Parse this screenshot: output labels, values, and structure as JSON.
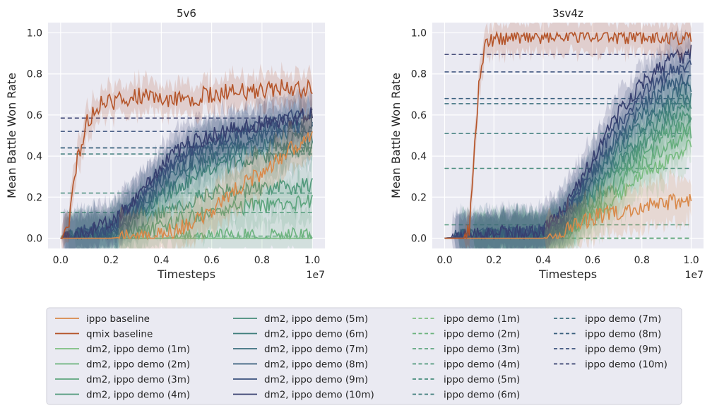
{
  "legend": {
    "placement": "bottom",
    "entries": [
      {
        "label": "ippo baseline",
        "color": "#d9894a",
        "dash": false
      },
      {
        "label": "qmix baseline",
        "color": "#b5552a",
        "dash": false
      },
      {
        "label": "dm2, ippo demo (1m)",
        "color": "#7cbf80",
        "dash": false
      },
      {
        "label": "dm2, ippo demo (2m)",
        "color": "#6cb37e",
        "dash": false
      },
      {
        "label": "dm2, ippo demo (3m)",
        "color": "#5ea67e",
        "dash": false
      },
      {
        "label": "dm2, ippo demo (4m)",
        "color": "#52997c",
        "dash": false
      },
      {
        "label": "dm2, ippo demo (5m)",
        "color": "#478c7b",
        "dash": false
      },
      {
        "label": "dm2, ippo demo (6m)",
        "color": "#3f7e7c",
        "dash": false
      },
      {
        "label": "dm2, ippo demo (7m)",
        "color": "#3b6f7d",
        "dash": false
      },
      {
        "label": "dm2, ippo demo (8m)",
        "color": "#3a607e",
        "dash": false
      },
      {
        "label": "dm2, ippo demo (9m)",
        "color": "#3a517c",
        "dash": false
      },
      {
        "label": "dm2, ippo demo (10m)",
        "color": "#373f6f",
        "dash": false
      },
      {
        "label": "ippo demo (1m)",
        "color": "#7cbf80",
        "dash": true
      },
      {
        "label": "ippo demo (2m)",
        "color": "#6cb37e",
        "dash": true
      },
      {
        "label": "ippo demo (3m)",
        "color": "#5ea67e",
        "dash": true
      },
      {
        "label": "ippo demo (4m)",
        "color": "#52997c",
        "dash": true
      },
      {
        "label": "ippo demo (5m)",
        "color": "#478c7b",
        "dash": true
      },
      {
        "label": "ippo demo (6m)",
        "color": "#3f7e7c",
        "dash": true
      },
      {
        "label": "ippo demo (7m)",
        "color": "#3b6f7d",
        "dash": true
      },
      {
        "label": "ippo demo (8m)",
        "color": "#3a607e",
        "dash": true
      },
      {
        "label": "ippo demo (9m)",
        "color": "#3a517c",
        "dash": true
      },
      {
        "label": "ippo demo (10m)",
        "color": "#373f6f",
        "dash": true
      }
    ]
  },
  "chart_data": [
    {
      "type": "line",
      "title": "5v6",
      "xlabel": "Timesteps",
      "ylabel": "Mean Battle Won Rate",
      "x_offset_label": "1e7",
      "xlim": [
        -0.05,
        1.05
      ],
      "ylim": [
        -0.05,
        1.05
      ],
      "xticks": [
        "0.0",
        "0.2",
        "0.4",
        "0.6",
        "0.8",
        "1.0"
      ],
      "yticks": [
        "0.0",
        "0.2",
        "0.4",
        "0.6",
        "0.8",
        "1.0"
      ],
      "grid": true,
      "series": [
        {
          "name": "ippo baseline",
          "x": [
            0,
            0.2,
            0.3,
            0.4,
            0.5,
            0.6,
            0.7,
            0.8,
            0.9,
            1.0
          ],
          "values": [
            0,
            0,
            0.01,
            0.02,
            0.06,
            0.14,
            0.24,
            0.32,
            0.42,
            0.51
          ]
        },
        {
          "name": "qmix baseline",
          "x": [
            0,
            0.03,
            0.06,
            0.1,
            0.15,
            0.2,
            0.3,
            0.4,
            0.5,
            0.6,
            0.7,
            0.8,
            0.9,
            1.0
          ],
          "values": [
            0,
            0.05,
            0.35,
            0.55,
            0.65,
            0.66,
            0.7,
            0.68,
            0.68,
            0.7,
            0.72,
            0.71,
            0.74,
            0.72
          ]
        },
        {
          "name": "dm2, ippo demo (1m)",
          "x": [
            0,
            0.2,
            0.4,
            0.6,
            0.8,
            1.0
          ],
          "values": [
            0,
            0,
            0,
            0,
            0,
            0
          ]
        },
        {
          "name": "dm2, ippo demo (2m)",
          "x": [
            0,
            0.2,
            0.4,
            0.6,
            0.8,
            1.0
          ],
          "values": [
            0,
            0,
            0,
            0.01,
            0.01,
            0.01
          ]
        },
        {
          "name": "dm2, ippo demo (3m)",
          "x": [
            0,
            0.2,
            0.3,
            0.4,
            0.5,
            0.6,
            0.7,
            0.8,
            0.9,
            1.0
          ],
          "values": [
            0,
            0,
            0.02,
            0.06,
            0.1,
            0.13,
            0.15,
            0.16,
            0.17,
            0.18
          ]
        },
        {
          "name": "dm2, ippo demo (4m)",
          "x": [
            0,
            0.2,
            0.3,
            0.4,
            0.5,
            0.6,
            0.7,
            0.8,
            0.9,
            1.0
          ],
          "values": [
            0,
            0.01,
            0.05,
            0.12,
            0.18,
            0.22,
            0.23,
            0.24,
            0.25,
            0.26
          ]
        },
        {
          "name": "dm2, ippo demo (5m)",
          "x": [
            0,
            0.2,
            0.3,
            0.4,
            0.5,
            0.6,
            0.7,
            0.8,
            0.9,
            1.0
          ],
          "values": [
            0,
            0.02,
            0.1,
            0.2,
            0.28,
            0.33,
            0.37,
            0.4,
            0.42,
            0.44
          ]
        },
        {
          "name": "dm2, ippo demo (6m)",
          "x": [
            0,
            0.2,
            0.3,
            0.4,
            0.5,
            0.6,
            0.7,
            0.8,
            0.9,
            1.0
          ],
          "values": [
            0,
            0.03,
            0.12,
            0.23,
            0.32,
            0.38,
            0.42,
            0.45,
            0.47,
            0.49
          ]
        },
        {
          "name": "dm2, ippo demo (7m)",
          "x": [
            0,
            0.2,
            0.3,
            0.4,
            0.5,
            0.6,
            0.7,
            0.8,
            0.9,
            1.0
          ],
          "values": [
            0,
            0.04,
            0.14,
            0.27,
            0.36,
            0.42,
            0.46,
            0.49,
            0.52,
            0.54
          ]
        },
        {
          "name": "dm2, ippo demo (8m)",
          "x": [
            0,
            0.2,
            0.3,
            0.4,
            0.5,
            0.6,
            0.7,
            0.8,
            0.9,
            1.0
          ],
          "values": [
            0,
            0.05,
            0.16,
            0.3,
            0.4,
            0.46,
            0.5,
            0.52,
            0.55,
            0.56
          ]
        },
        {
          "name": "dm2, ippo demo (9m)",
          "x": [
            0,
            0.2,
            0.3,
            0.4,
            0.5,
            0.6,
            0.7,
            0.8,
            0.9,
            1.0
          ],
          "values": [
            0,
            0.06,
            0.18,
            0.33,
            0.43,
            0.48,
            0.52,
            0.55,
            0.58,
            0.6
          ]
        },
        {
          "name": "dm2, ippo demo (10m)",
          "x": [
            0,
            0.2,
            0.3,
            0.4,
            0.5,
            0.6,
            0.7,
            0.8,
            0.9,
            1.0
          ],
          "values": [
            0,
            0.07,
            0.2,
            0.36,
            0.46,
            0.5,
            0.54,
            0.56,
            0.58,
            0.6
          ]
        },
        {
          "name": "ippo demo (1m)",
          "x": [
            0,
            1.0
          ],
          "values": [
            0,
            0
          ]
        },
        {
          "name": "ippo demo (2m)",
          "x": [
            0,
            1.0
          ],
          "values": [
            0,
            0
          ]
        },
        {
          "name": "ippo demo (3m)",
          "x": [
            0,
            1.0
          ],
          "values": [
            0.01,
            0.01
          ]
        },
        {
          "name": "ippo demo (4m)",
          "x": [
            0,
            1.0
          ],
          "values": [
            0.125,
            0.125
          ]
        },
        {
          "name": "ippo demo (5m)",
          "x": [
            0,
            1.0
          ],
          "values": [
            0.22,
            0.22
          ]
        },
        {
          "name": "ippo demo (6m)",
          "x": [
            0,
            1.0
          ],
          "values": [
            0.41,
            0.41
          ]
        },
        {
          "name": "ippo demo (7m)",
          "x": [
            0,
            1.0
          ],
          "values": [
            0.44,
            0.44
          ]
        },
        {
          "name": "ippo demo (8m)",
          "x": [
            0,
            1.0
          ],
          "values": [
            0.44,
            0.44
          ]
        },
        {
          "name": "ippo demo (9m)",
          "x": [
            0,
            1.0
          ],
          "values": [
            0.52,
            0.52
          ]
        },
        {
          "name": "ippo demo (10m)",
          "x": [
            0,
            1.0
          ],
          "values": [
            0.585,
            0.585
          ]
        }
      ]
    },
    {
      "type": "line",
      "title": "3sv4z",
      "xlabel": "Timesteps",
      "ylabel": "Mean Battle Won Rate",
      "x_offset_label": "1e7",
      "xlim": [
        -0.05,
        1.05
      ],
      "ylim": [
        -0.05,
        1.05
      ],
      "xticks": [
        "0.0",
        "0.2",
        "0.4",
        "0.6",
        "0.8",
        "1.0"
      ],
      "yticks": [
        "0.0",
        "0.2",
        "0.4",
        "0.6",
        "0.8",
        "1.0"
      ],
      "grid": true,
      "series": [
        {
          "name": "ippo baseline",
          "x": [
            0,
            0.3,
            0.4,
            0.5,
            0.6,
            0.7,
            0.8,
            0.9,
            1.0
          ],
          "values": [
            0,
            0,
            0,
            0.04,
            0.1,
            0.13,
            0.15,
            0.17,
            0.19
          ]
        },
        {
          "name": "qmix baseline",
          "x": [
            0,
            0.08,
            0.1,
            0.12,
            0.14,
            0.16,
            0.2,
            0.3,
            0.4,
            0.5,
            0.6,
            0.7,
            0.8,
            0.9,
            1.0
          ],
          "values": [
            0,
            0,
            0.05,
            0.4,
            0.75,
            0.93,
            0.98,
            0.99,
            0.99,
            0.99,
            0.99,
            0.99,
            0.99,
            0.99,
            0.98
          ]
        },
        {
          "name": "dm2, ippo demo (1m)",
          "x": [
            0,
            0.4,
            0.5,
            0.6,
            0.7,
            0.8,
            0.9,
            1.0
          ],
          "values": [
            0,
            0,
            0.02,
            0.1,
            0.2,
            0.3,
            0.38,
            0.46
          ]
        },
        {
          "name": "dm2, ippo demo (2m)",
          "x": [
            0,
            0.4,
            0.5,
            0.6,
            0.7,
            0.8,
            0.9,
            1.0
          ],
          "values": [
            0,
            0.01,
            0.04,
            0.14,
            0.26,
            0.36,
            0.45,
            0.52
          ]
        },
        {
          "name": "dm2, ippo demo (3m)",
          "x": [
            0,
            0.4,
            0.5,
            0.6,
            0.7,
            0.8,
            0.9,
            1.0
          ],
          "values": [
            0,
            0.01,
            0.05,
            0.17,
            0.3,
            0.42,
            0.5,
            0.56
          ]
        },
        {
          "name": "dm2, ippo demo (4m)",
          "x": [
            0,
            0.4,
            0.5,
            0.6,
            0.7,
            0.8,
            0.9,
            1.0
          ],
          "values": [
            0,
            0.01,
            0.06,
            0.2,
            0.34,
            0.46,
            0.55,
            0.6
          ]
        },
        {
          "name": "dm2, ippo demo (5m)",
          "x": [
            0,
            0.4,
            0.5,
            0.6,
            0.7,
            0.8,
            0.9,
            1.0
          ],
          "values": [
            0,
            0.02,
            0.08,
            0.24,
            0.38,
            0.5,
            0.6,
            0.65
          ]
        },
        {
          "name": "dm2, ippo demo (6m)",
          "x": [
            0,
            0.4,
            0.5,
            0.6,
            0.7,
            0.8,
            0.9,
            1.0
          ],
          "values": [
            0,
            0.02,
            0.1,
            0.27,
            0.42,
            0.55,
            0.64,
            0.69
          ]
        },
        {
          "name": "dm2, ippo demo (7m)",
          "x": [
            0,
            0.4,
            0.5,
            0.6,
            0.7,
            0.8,
            0.9,
            1.0
          ],
          "values": [
            0,
            0.02,
            0.12,
            0.3,
            0.46,
            0.6,
            0.69,
            0.74
          ]
        },
        {
          "name": "dm2, ippo demo (8m)",
          "x": [
            0,
            0.4,
            0.5,
            0.6,
            0.7,
            0.8,
            0.9,
            1.0
          ],
          "values": [
            0,
            0.03,
            0.14,
            0.33,
            0.5,
            0.65,
            0.74,
            0.79
          ]
        },
        {
          "name": "dm2, ippo demo (9m)",
          "x": [
            0,
            0.4,
            0.5,
            0.6,
            0.7,
            0.8,
            0.9,
            1.0
          ],
          "values": [
            0,
            0.03,
            0.16,
            0.36,
            0.55,
            0.7,
            0.8,
            0.86
          ]
        },
        {
          "name": "dm2, ippo demo (10m)",
          "x": [
            0,
            0.4,
            0.5,
            0.6,
            0.7,
            0.8,
            0.9,
            1.0
          ],
          "values": [
            0,
            0.04,
            0.18,
            0.38,
            0.6,
            0.75,
            0.85,
            0.91
          ]
        },
        {
          "name": "ippo demo (1m)",
          "x": [
            0,
            1.0
          ],
          "values": [
            0,
            0
          ]
        },
        {
          "name": "ippo demo (2m)",
          "x": [
            0,
            1.0
          ],
          "values": [
            0,
            0
          ]
        },
        {
          "name": "ippo demo (3m)",
          "x": [
            0,
            1.0
          ],
          "values": [
            0,
            0
          ]
        },
        {
          "name": "ippo demo (4m)",
          "x": [
            0,
            1.0
          ],
          "values": [
            0.065,
            0.065
          ]
        },
        {
          "name": "ippo demo (5m)",
          "x": [
            0,
            1.0
          ],
          "values": [
            0.34,
            0.34
          ]
        },
        {
          "name": "ippo demo (6m)",
          "x": [
            0,
            1.0
          ],
          "values": [
            0.51,
            0.51
          ]
        },
        {
          "name": "ippo demo (7m)",
          "x": [
            0,
            1.0
          ],
          "values": [
            0.655,
            0.655
          ]
        },
        {
          "name": "ippo demo (8m)",
          "x": [
            0,
            1.0
          ],
          "values": [
            0.68,
            0.68
          ]
        },
        {
          "name": "ippo demo (9m)",
          "x": [
            0,
            1.0
          ],
          "values": [
            0.81,
            0.81
          ]
        },
        {
          "name": "ippo demo (10m)",
          "x": [
            0,
            1.0
          ],
          "values": [
            0.895,
            0.895
          ]
        }
      ]
    }
  ]
}
